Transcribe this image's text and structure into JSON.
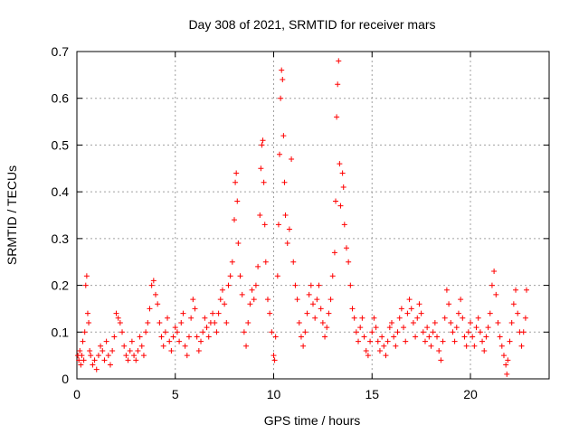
{
  "chart_data": {
    "type": "scatter",
    "title": "Day 308 of 2021, SRMTID for receiver mars",
    "xlabel": "GPS time / hours",
    "ylabel": "SRMTID / TECUs",
    "xlim": [
      0,
      24
    ],
    "ylim": [
      0,
      0.7
    ],
    "x_ticks": [
      0,
      5,
      10,
      15,
      20
    ],
    "x_tick_labels": [
      "0",
      "5",
      "10",
      "15",
      "20"
    ],
    "y_ticks": [
      0,
      0.1,
      0.2,
      0.3,
      0.4,
      0.5,
      0.6,
      0.7
    ],
    "y_tick_labels": [
      "0",
      "0.1",
      "0.2",
      "0.3",
      "0.4",
      "0.5",
      "0.6",
      "0.7"
    ],
    "grid": true,
    "marker": "+",
    "color": "#ff0000",
    "series": [
      {
        "name": "SRMTID",
        "points": [
          [
            0.05,
            0.05
          ],
          [
            0.1,
            0.04
          ],
          [
            0.15,
            0.06
          ],
          [
            0.2,
            0.03
          ],
          [
            0.25,
            0.05
          ],
          [
            0.3,
            0.08
          ],
          [
            0.35,
            0.04
          ],
          [
            0.4,
            0.1
          ],
          [
            0.45,
            0.2
          ],
          [
            0.5,
            0.22
          ],
          [
            0.55,
            0.14
          ],
          [
            0.6,
            0.12
          ],
          [
            0.65,
            0.06
          ],
          [
            0.7,
            0.05
          ],
          [
            0.8,
            0.03
          ],
          [
            0.9,
            0.04
          ],
          [
            1.0,
            0.02
          ],
          [
            1.1,
            0.05
          ],
          [
            1.2,
            0.07
          ],
          [
            1.3,
            0.06
          ],
          [
            1.4,
            0.04
          ],
          [
            1.5,
            0.08
          ],
          [
            1.6,
            0.05
          ],
          [
            1.7,
            0.03
          ],
          [
            1.8,
            0.06
          ],
          [
            1.9,
            0.09
          ],
          [
            2.0,
            0.14
          ],
          [
            2.1,
            0.13
          ],
          [
            2.2,
            0.12
          ],
          [
            2.3,
            0.1
          ],
          [
            2.4,
            0.07
          ],
          [
            2.5,
            0.05
          ],
          [
            2.6,
            0.04
          ],
          [
            2.7,
            0.06
          ],
          [
            2.8,
            0.08
          ],
          [
            2.9,
            0.05
          ],
          [
            3.0,
            0.04
          ],
          [
            3.1,
            0.06
          ],
          [
            3.2,
            0.09
          ],
          [
            3.3,
            0.07
          ],
          [
            3.4,
            0.05
          ],
          [
            3.5,
            0.1
          ],
          [
            3.6,
            0.12
          ],
          [
            3.7,
            0.15
          ],
          [
            3.8,
            0.2
          ],
          [
            3.9,
            0.21
          ],
          [
            4.0,
            0.18
          ],
          [
            4.1,
            0.16
          ],
          [
            4.2,
            0.12
          ],
          [
            4.3,
            0.09
          ],
          [
            4.4,
            0.07
          ],
          [
            4.5,
            0.1
          ],
          [
            4.6,
            0.13
          ],
          [
            4.7,
            0.08
          ],
          [
            4.8,
            0.06
          ],
          [
            4.9,
            0.09
          ],
          [
            5.0,
            0.11
          ],
          [
            5.1,
            0.1
          ],
          [
            5.2,
            0.08
          ],
          [
            5.3,
            0.12
          ],
          [
            5.4,
            0.14
          ],
          [
            5.5,
            0.07
          ],
          [
            5.6,
            0.05
          ],
          [
            5.7,
            0.09
          ],
          [
            5.8,
            0.13
          ],
          [
            5.9,
            0.17
          ],
          [
            6.0,
            0.15
          ],
          [
            6.1,
            0.09
          ],
          [
            6.2,
            0.06
          ],
          [
            6.3,
            0.08
          ],
          [
            6.4,
            0.1
          ],
          [
            6.5,
            0.13
          ],
          [
            6.6,
            0.11
          ],
          [
            6.7,
            0.09
          ],
          [
            6.8,
            0.12
          ],
          [
            6.9,
            0.14
          ],
          [
            7.0,
            0.12
          ],
          [
            7.1,
            0.1
          ],
          [
            7.2,
            0.14
          ],
          [
            7.3,
            0.17
          ],
          [
            7.4,
            0.19
          ],
          [
            7.5,
            0.16
          ],
          [
            7.6,
            0.12
          ],
          [
            7.7,
            0.2
          ],
          [
            7.8,
            0.22
          ],
          [
            7.9,
            0.25
          ],
          [
            8.0,
            0.34
          ],
          [
            8.05,
            0.42
          ],
          [
            8.1,
            0.44
          ],
          [
            8.15,
            0.38
          ],
          [
            8.2,
            0.29
          ],
          [
            8.3,
            0.22
          ],
          [
            8.4,
            0.18
          ],
          [
            8.5,
            0.1
          ],
          [
            8.6,
            0.07
          ],
          [
            8.7,
            0.12
          ],
          [
            8.8,
            0.16
          ],
          [
            8.9,
            0.19
          ],
          [
            9.0,
            0.17
          ],
          [
            9.1,
            0.2
          ],
          [
            9.2,
            0.24
          ],
          [
            9.3,
            0.35
          ],
          [
            9.35,
            0.45
          ],
          [
            9.4,
            0.5
          ],
          [
            9.45,
            0.51
          ],
          [
            9.5,
            0.42
          ],
          [
            9.55,
            0.33
          ],
          [
            9.6,
            0.25
          ],
          [
            9.7,
            0.17
          ],
          [
            9.8,
            0.14
          ],
          [
            9.9,
            0.1
          ],
          [
            10.0,
            0.05
          ],
          [
            10.05,
            0.04
          ],
          [
            10.1,
            0.09
          ],
          [
            10.2,
            0.22
          ],
          [
            10.25,
            0.33
          ],
          [
            10.3,
            0.48
          ],
          [
            10.35,
            0.6
          ],
          [
            10.4,
            0.66
          ],
          [
            10.45,
            0.64
          ],
          [
            10.5,
            0.52
          ],
          [
            10.55,
            0.42
          ],
          [
            10.6,
            0.35
          ],
          [
            10.7,
            0.29
          ],
          [
            10.8,
            0.32
          ],
          [
            10.9,
            0.47
          ],
          [
            11.0,
            0.25
          ],
          [
            11.1,
            0.2
          ],
          [
            11.2,
            0.17
          ],
          [
            11.3,
            0.12
          ],
          [
            11.4,
            0.09
          ],
          [
            11.5,
            0.07
          ],
          [
            11.6,
            0.1
          ],
          [
            11.7,
            0.14
          ],
          [
            11.8,
            0.18
          ],
          [
            11.9,
            0.2
          ],
          [
            12.0,
            0.16
          ],
          [
            12.1,
            0.13
          ],
          [
            12.2,
            0.17
          ],
          [
            12.3,
            0.2
          ],
          [
            12.4,
            0.15
          ],
          [
            12.5,
            0.12
          ],
          [
            12.6,
            0.09
          ],
          [
            12.7,
            0.11
          ],
          [
            12.8,
            0.14
          ],
          [
            12.9,
            0.17
          ],
          [
            13.0,
            0.22
          ],
          [
            13.1,
            0.27
          ],
          [
            13.15,
            0.38
          ],
          [
            13.2,
            0.56
          ],
          [
            13.25,
            0.63
          ],
          [
            13.3,
            0.68
          ],
          [
            13.35,
            0.46
          ],
          [
            13.4,
            0.37
          ],
          [
            13.5,
            0.44
          ],
          [
            13.55,
            0.41
          ],
          [
            13.6,
            0.33
          ],
          [
            13.7,
            0.28
          ],
          [
            13.8,
            0.25
          ],
          [
            13.9,
            0.2
          ],
          [
            14.0,
            0.15
          ],
          [
            14.1,
            0.13
          ],
          [
            14.2,
            0.1
          ],
          [
            14.3,
            0.08
          ],
          [
            14.4,
            0.11
          ],
          [
            14.5,
            0.13
          ],
          [
            14.6,
            0.09
          ],
          [
            14.7,
            0.06
          ],
          [
            14.8,
            0.05
          ],
          [
            14.9,
            0.08
          ],
          [
            15.0,
            0.1
          ],
          [
            15.1,
            0.13
          ],
          [
            15.2,
            0.11
          ],
          [
            15.3,
            0.08
          ],
          [
            15.4,
            0.06
          ],
          [
            15.5,
            0.09
          ],
          [
            15.6,
            0.07
          ],
          [
            15.7,
            0.05
          ],
          [
            15.8,
            0.08
          ],
          [
            15.9,
            0.11
          ],
          [
            16.0,
            0.12
          ],
          [
            16.1,
            0.09
          ],
          [
            16.2,
            0.07
          ],
          [
            16.3,
            0.1
          ],
          [
            16.4,
            0.13
          ],
          [
            16.5,
            0.15
          ],
          [
            16.6,
            0.11
          ],
          [
            16.7,
            0.08
          ],
          [
            16.8,
            0.14
          ],
          [
            16.9,
            0.17
          ],
          [
            17.0,
            0.15
          ],
          [
            17.1,
            0.12
          ],
          [
            17.2,
            0.09
          ],
          [
            17.3,
            0.13
          ],
          [
            17.4,
            0.16
          ],
          [
            17.5,
            0.14
          ],
          [
            17.6,
            0.1
          ],
          [
            17.7,
            0.08
          ],
          [
            17.8,
            0.11
          ],
          [
            17.9,
            0.09
          ],
          [
            18.0,
            0.07
          ],
          [
            18.1,
            0.1
          ],
          [
            18.2,
            0.12
          ],
          [
            18.3,
            0.09
          ],
          [
            18.4,
            0.06
          ],
          [
            18.5,
            0.04
          ],
          [
            18.6,
            0.08
          ],
          [
            18.7,
            0.13
          ],
          [
            18.8,
            0.19
          ],
          [
            18.9,
            0.16
          ],
          [
            19.0,
            0.12
          ],
          [
            19.1,
            0.1
          ],
          [
            19.2,
            0.08
          ],
          [
            19.3,
            0.11
          ],
          [
            19.4,
            0.14
          ],
          [
            19.5,
            0.17
          ],
          [
            19.6,
            0.13
          ],
          [
            19.7,
            0.09
          ],
          [
            19.8,
            0.07
          ],
          [
            19.9,
            0.1
          ],
          [
            20.0,
            0.12
          ],
          [
            20.1,
            0.09
          ],
          [
            20.2,
            0.07
          ],
          [
            20.3,
            0.11
          ],
          [
            20.4,
            0.13
          ],
          [
            20.5,
            0.1
          ],
          [
            20.6,
            0.08
          ],
          [
            20.7,
            0.06
          ],
          [
            20.8,
            0.09
          ],
          [
            20.9,
            0.11
          ],
          [
            21.0,
            0.14
          ],
          [
            21.1,
            0.2
          ],
          [
            21.2,
            0.23
          ],
          [
            21.3,
            0.18
          ],
          [
            21.4,
            0.12
          ],
          [
            21.5,
            0.09
          ],
          [
            21.6,
            0.07
          ],
          [
            21.7,
            0.05
          ],
          [
            21.8,
            0.03
          ],
          [
            21.85,
            0.01
          ],
          [
            21.9,
            0.04
          ],
          [
            22.0,
            0.08
          ],
          [
            22.1,
            0.12
          ],
          [
            22.2,
            0.16
          ],
          [
            22.3,
            0.19
          ],
          [
            22.4,
            0.14
          ],
          [
            22.5,
            0.1
          ],
          [
            22.6,
            0.07
          ],
          [
            22.7,
            0.1
          ],
          [
            22.8,
            0.13
          ],
          [
            22.85,
            0.19
          ]
        ]
      }
    ]
  }
}
